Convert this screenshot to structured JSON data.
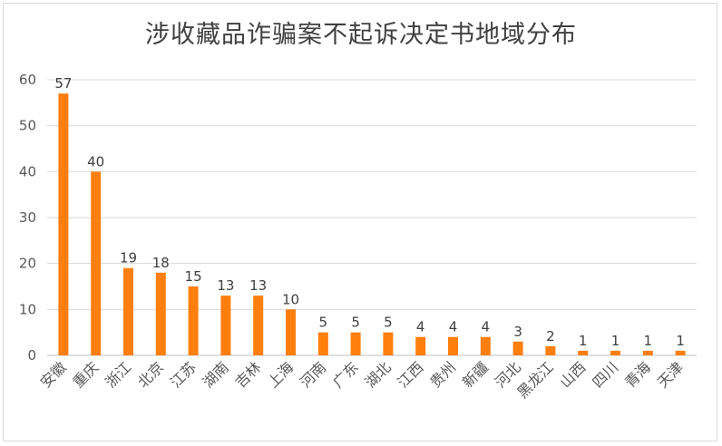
{
  "chart_data": {
    "type": "bar",
    "title": "涉收藏品诈骗案不起诉决定书地域分布",
    "xlabel": "",
    "ylabel": "",
    "ylim": [
      0,
      60
    ],
    "yticks": [
      0,
      10,
      20,
      30,
      40,
      50,
      60
    ],
    "grid": true,
    "legend": "none",
    "bar_color": "#FF7F0E",
    "categories": [
      "安徽",
      "重庆",
      "浙江",
      "北京",
      "江苏",
      "湖南",
      "吉林",
      "上海",
      "河南",
      "广东",
      "湖北",
      "江西",
      "贵州",
      "新疆",
      "河北",
      "黑龙江",
      "山西",
      "四川",
      "青海",
      "天津"
    ],
    "values": [
      57,
      40,
      19,
      18,
      15,
      13,
      13,
      10,
      5,
      5,
      5,
      4,
      4,
      4,
      3,
      2,
      1,
      1,
      1,
      1
    ]
  }
}
